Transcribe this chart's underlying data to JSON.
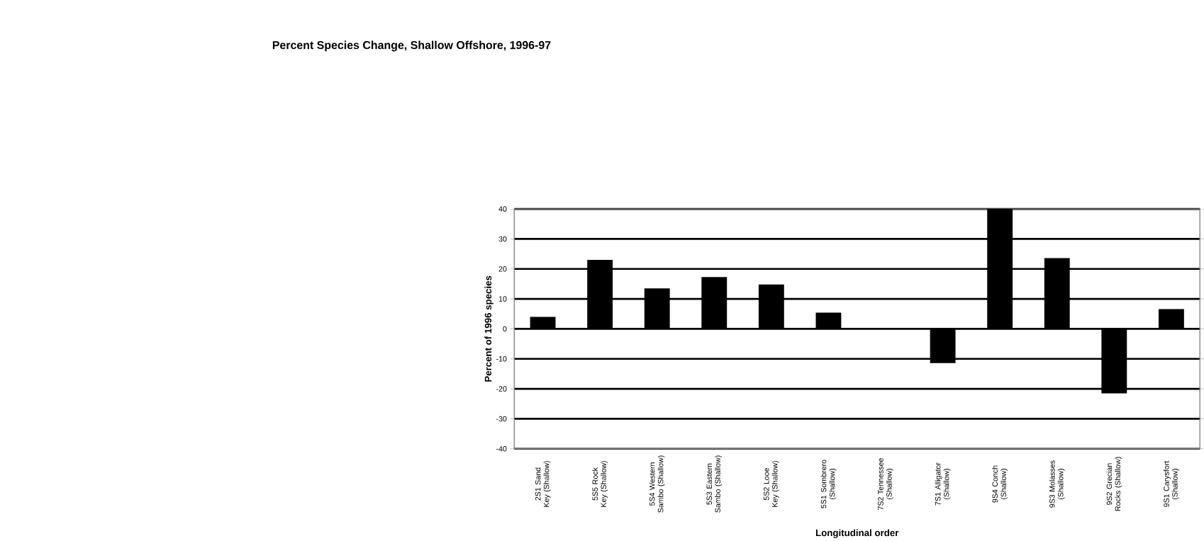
{
  "chart_data": {
    "type": "bar",
    "title": "Percent Species Change, Shallow Offshore, 1996-97",
    "xlabel": "Longitudinal order",
    "ylabel": "Percent of 1996 species",
    "categories": [
      "2S1 Sand Key (Shallow)",
      "5S5 Rock Key (Shallow)",
      "5S4 Western Sambo (Shallow)",
      "5S3 Eastern Sambo (Shallow)",
      "5S2 Looe Key (Shallow)",
      "5S1 Sombrero (Shallow)",
      "7S2 Tennessee (Shallow)",
      "7S1 Alligator (Shallow)",
      "9S4 Conch (Shallow)",
      "9S3 Molasses (Shallow)",
      "9S2 Grecian Rocks (Shallow)",
      "9S1 Carysfort (Shallow)"
    ],
    "values": [
      4,
      23,
      13.5,
      17.3,
      14.8,
      5.4,
      0,
      -11.4,
      40,
      23.6,
      -21.5,
      6.6
    ],
    "color": "#000000",
    "ylim": [
      -40,
      40
    ],
    "yticks": [
      -40,
      -30,
      -20,
      -10,
      0,
      10,
      20,
      30,
      40
    ],
    "grid": "y"
  }
}
